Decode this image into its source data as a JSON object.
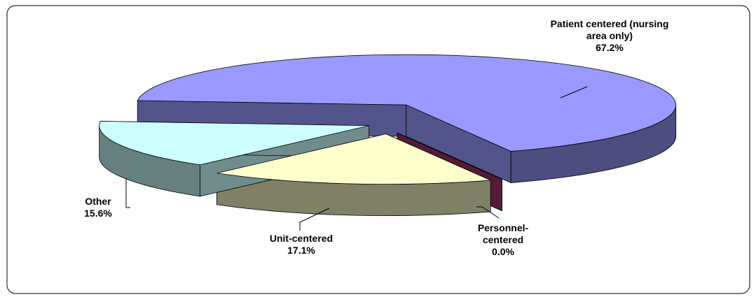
{
  "chart_data": {
    "type": "pie3d",
    "categories": [
      "Patient centered (nursing area only)",
      "Personnel-centered",
      "Unit-centered",
      "Other"
    ],
    "values": [
      67.2,
      0.0,
      17.1,
      15.6
    ],
    "value_labels": [
      "67.2%",
      "0.0%",
      "17.1%",
      "15.6%"
    ],
    "colors": [
      "#9999ff",
      "#993366",
      "#ffffcc",
      "#ccffff"
    ]
  }
}
